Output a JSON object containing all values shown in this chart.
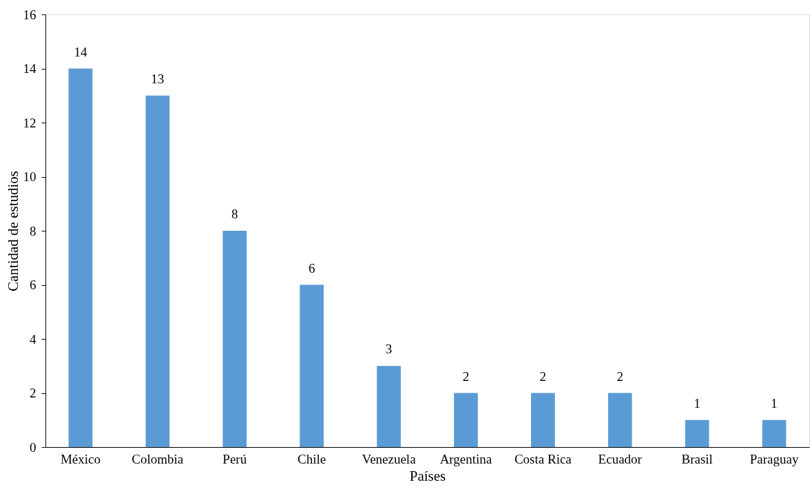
{
  "chart_data": {
    "type": "bar",
    "xlabel": "Países",
    "ylabel": "Cantidad de estudios",
    "categories": [
      "México",
      "Colombia",
      "Perú",
      "Chile",
      "Venezuela",
      "Argentina",
      "Costa Rica",
      "Ecuador",
      "Brasil",
      "Paraguay"
    ],
    "values": [
      14,
      13,
      8,
      6,
      3,
      2,
      2,
      2,
      1,
      1
    ],
    "color": "#5b9bd5",
    "ylim": [
      0,
      16
    ],
    "yticks": [
      0,
      2,
      4,
      6,
      8,
      10,
      12,
      14,
      16
    ],
    "grid": false,
    "data_labels": true
  }
}
